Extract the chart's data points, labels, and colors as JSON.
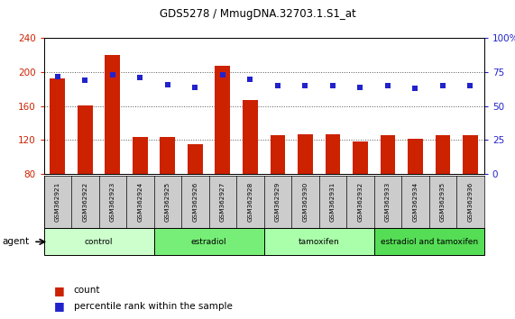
{
  "title": "GDS5278 / MmugDNA.32703.1.S1_at",
  "samples": [
    "GSM362921",
    "GSM362922",
    "GSM362923",
    "GSM362924",
    "GSM362925",
    "GSM362926",
    "GSM362927",
    "GSM362928",
    "GSM362929",
    "GSM362930",
    "GSM362931",
    "GSM362932",
    "GSM362933",
    "GSM362934",
    "GSM362935",
    "GSM362936"
  ],
  "bar_heights": [
    193,
    161,
    220,
    124,
    124,
    115,
    208,
    167,
    126,
    127,
    127,
    118,
    126,
    121,
    126,
    126
  ],
  "pct_values": [
    72,
    69,
    73,
    71,
    66,
    64,
    73,
    70,
    65,
    65,
    65,
    64,
    65,
    63,
    65,
    65
  ],
  "bar_color": "#cc2200",
  "percentile_color": "#2222cc",
  "ylim_left": [
    80,
    240
  ],
  "ylim_right": [
    0,
    100
  ],
  "yticks_left": [
    80,
    120,
    160,
    200,
    240
  ],
  "yticks_right": [
    0,
    25,
    50,
    75,
    100
  ],
  "groups": [
    {
      "label": "control",
      "start": 0,
      "end": 4,
      "color": "#ccffcc"
    },
    {
      "label": "estradiol",
      "start": 4,
      "end": 8,
      "color": "#77ee77"
    },
    {
      "label": "tamoxifen",
      "start": 8,
      "end": 12,
      "color": "#aaffaa"
    },
    {
      "label": "estradiol and tamoxifen",
      "start": 12,
      "end": 16,
      "color": "#55dd55"
    }
  ],
  "agent_label": "agent",
  "legend_count_label": "count",
  "legend_percentile_label": "percentile rank within the sample",
  "tick_area_color": "#cccccc"
}
